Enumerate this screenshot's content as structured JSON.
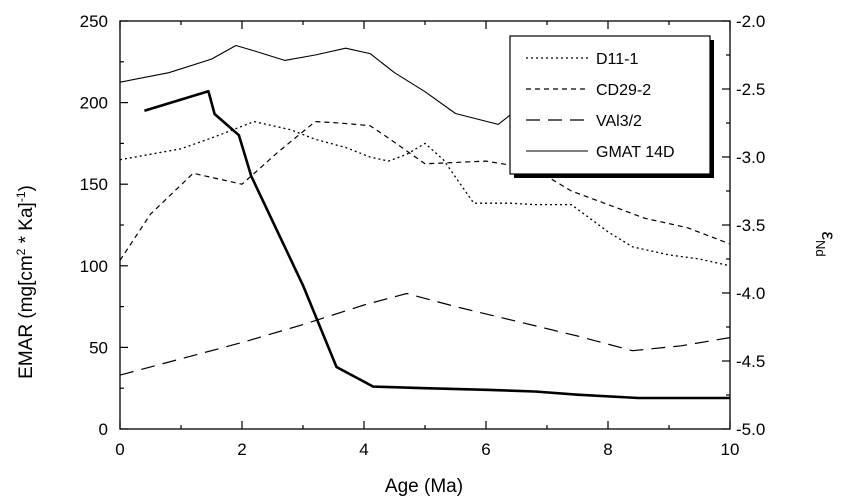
{
  "chart_data": {
    "type": "line",
    "xlabel": "Age (Ma)",
    "ylabel": "EMAR (mg[cm",
    "ylabel_sup1": "2",
    "ylabel_mid": " * Ka]",
    "ylabel_sup2": "-1",
    "ylabel_end": ")",
    "y2label": "ε",
    "y2label_sub": "Nd",
    "xlim": [
      0,
      10
    ],
    "ylim": [
      0,
      250
    ],
    "y2lim": [
      -5.0,
      -2.0
    ],
    "xticks": [
      "0",
      "2",
      "4",
      "6",
      "8",
      "10"
    ],
    "yticks": [
      "0",
      "50",
      "100",
      "150",
      "200",
      "250"
    ],
    "y2ticks": [
      "-5.0",
      "-4.5",
      "-4.0",
      "-3.5",
      "-3.0",
      "-2.5",
      "-2.0"
    ],
    "legend_position": "top-right",
    "series": [
      {
        "name": "D11-1",
        "axis": "right",
        "style": "dotted",
        "x": [
          0.0,
          1.0,
          1.5,
          2.2,
          2.8,
          3.2,
          3.7,
          4.1,
          4.4,
          4.7,
          5.0,
          5.3,
          5.8,
          6.4,
          6.8,
          7.4,
          8.0,
          8.4,
          9.0,
          9.5,
          10.0
        ],
        "y": [
          -3.02,
          -2.94,
          -2.86,
          -2.74,
          -2.8,
          -2.87,
          -2.93,
          -3.0,
          -3.03,
          -2.98,
          -2.9,
          -3.02,
          -3.34,
          -3.34,
          -3.35,
          -3.35,
          -3.55,
          -3.66,
          -3.72,
          -3.75,
          -3.8
        ]
      },
      {
        "name": "CD29-2",
        "axis": "right",
        "style": "short-dash",
        "x": [
          0.0,
          0.5,
          1.2,
          2.0,
          2.6,
          3.2,
          3.6,
          4.1,
          4.4,
          5.0,
          6.0,
          6.8,
          7.4,
          8.0,
          8.6,
          9.3,
          10.0
        ],
        "y": [
          -3.76,
          -3.42,
          -3.12,
          -3.2,
          -2.96,
          -2.74,
          -2.75,
          -2.77,
          -2.86,
          -3.05,
          -3.03,
          -3.09,
          -3.25,
          -3.35,
          -3.45,
          -3.52,
          -3.64
        ]
      },
      {
        "name": "VAl3/2",
        "axis": "left",
        "style": "long-dash",
        "x": [
          0.0,
          1.0,
          2.0,
          3.0,
          4.0,
          4.7,
          5.5,
          6.5,
          7.5,
          8.4,
          9.2,
          10.0
        ],
        "y": [
          33,
          43,
          53,
          64,
          76,
          83,
          75,
          66,
          57,
          48,
          51,
          56
        ]
      },
      {
        "name": "GMAT 14D",
        "axis": "right",
        "style": "solid",
        "x": [
          0.0,
          0.8,
          1.5,
          1.9,
          2.2,
          2.7,
          3.2,
          3.7,
          4.1,
          4.5,
          5.0,
          5.5,
          6.2,
          6.6
        ],
        "y": [
          -2.45,
          -2.38,
          -2.28,
          -2.18,
          -2.22,
          -2.29,
          -2.25,
          -2.2,
          -2.24,
          -2.38,
          -2.52,
          -2.68,
          -2.76,
          -2.62
        ]
      },
      {
        "name": "",
        "axis": "left",
        "style": "bold-solid",
        "x": [
          0.4,
          1.45,
          1.55,
          1.95,
          2.15,
          3.0,
          3.55,
          4.15,
          5.0,
          6.0,
          6.8,
          7.5,
          8.5,
          9.3,
          10.0
        ],
        "y": [
          195,
          207,
          193,
          180,
          155,
          88,
          38,
          26,
          25,
          24,
          23,
          21,
          19,
          19,
          19
        ]
      }
    ]
  }
}
